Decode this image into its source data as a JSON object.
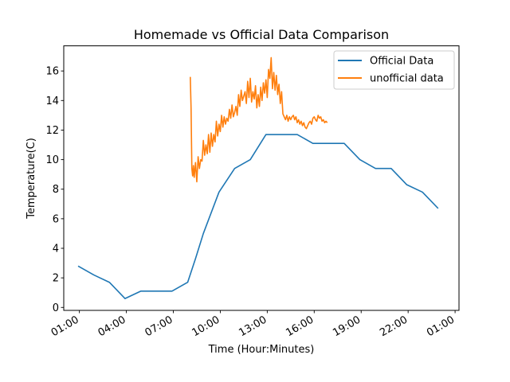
{
  "chart_data": {
    "type": "line",
    "title": "Homemade vs Official Data Comparison",
    "xlabel": "Time (Hour:Minutes)",
    "ylabel": "Temperature(C)",
    "xlim": [
      "00:00",
      "25:15"
    ],
    "ylim": [
      -0.2,
      17.7
    ],
    "x_ticks": [
      "01:00",
      "04:00",
      "07:00",
      "10:00",
      "13:00",
      "16:00",
      "19:00",
      "22:00",
      "01:00"
    ],
    "y_ticks": [
      0,
      2,
      4,
      6,
      8,
      10,
      12,
      14,
      16
    ],
    "grid": false,
    "legend_placement": "top-right",
    "series": [
      {
        "name": "Official Data",
        "color": "#1f77b4",
        "x": [
          "00:55",
          "01:55",
          "02:55",
          "03:55",
          "04:55",
          "05:55",
          "06:55",
          "07:55",
          "08:25",
          "08:55",
          "09:55",
          "10:55",
          "11:55",
          "12:55",
          "13:55",
          "14:55",
          "15:55",
          "16:55",
          "17:55",
          "18:55",
          "19:55",
          "20:55",
          "21:55",
          "22:55",
          "23:55"
        ],
        "values": [
          2.8,
          2.2,
          1.7,
          0.6,
          1.1,
          1.1,
          1.1,
          1.7,
          3.3,
          5.0,
          7.8,
          9.4,
          10.0,
          11.7,
          11.7,
          11.7,
          11.1,
          11.1,
          11.1,
          10.0,
          9.4,
          9.4,
          8.3,
          7.8,
          6.7
        ]
      },
      {
        "name": "unofficial data",
        "color": "#ff7f0e",
        "x": [
          "08:05",
          "08:08",
          "08:11",
          "08:14",
          "08:17",
          "08:20",
          "08:25",
          "08:30",
          "08:35",
          "08:40",
          "08:45",
          "08:50",
          "08:55",
          "09:00",
          "09:05",
          "09:10",
          "09:15",
          "09:20",
          "09:25",
          "09:30",
          "09:35",
          "09:40",
          "09:45",
          "09:50",
          "09:55",
          "10:00",
          "10:05",
          "10:10",
          "10:15",
          "10:20",
          "10:25",
          "10:30",
          "10:35",
          "10:40",
          "10:45",
          "10:50",
          "10:55",
          "11:00",
          "11:05",
          "11:10",
          "11:15",
          "11:20",
          "11:25",
          "11:30",
          "11:35",
          "11:40",
          "11:45",
          "11:50",
          "11:55",
          "12:00",
          "12:05",
          "12:10",
          "12:15",
          "12:20",
          "12:25",
          "12:30",
          "12:35",
          "12:40",
          "12:45",
          "12:50",
          "12:55",
          "13:00",
          "13:05",
          "13:10",
          "13:15",
          "13:20",
          "13:25",
          "13:30",
          "13:35",
          "13:40",
          "13:45",
          "13:50",
          "13:55",
          "14:00",
          "14:05",
          "14:10",
          "14:15",
          "14:20",
          "14:25",
          "14:30",
          "14:35",
          "14:40",
          "14:45",
          "14:50",
          "14:55",
          "15:00",
          "15:05",
          "15:10",
          "15:15",
          "15:20",
          "15:25",
          "15:30",
          "15:35",
          "15:40",
          "15:45",
          "15:50",
          "15:55",
          "16:00",
          "16:05",
          "16:10",
          "16:15",
          "16:20",
          "16:25",
          "16:30",
          "16:35",
          "16:40",
          "16:45",
          "16:50"
        ],
        "values": [
          15.6,
          13.5,
          9.4,
          8.9,
          9.6,
          8.8,
          9.8,
          8.5,
          10.2,
          9.4,
          10.0,
          9.9,
          11.3,
          10.3,
          11.0,
          10.4,
          11.7,
          10.5,
          11.8,
          10.9,
          11.7,
          11.2,
          12.6,
          11.6,
          12.4,
          11.9,
          13.0,
          12.2,
          12.9,
          12.4,
          12.8,
          12.6,
          13.4,
          12.8,
          13.7,
          12.9,
          13.2,
          13.6,
          13.0,
          14.4,
          13.6,
          14.7,
          14.0,
          14.3,
          14.6,
          13.8,
          15.3,
          14.2,
          15.5,
          13.9,
          14.6,
          14.1,
          15.0,
          13.5,
          14.4,
          13.6,
          14.9,
          14.0,
          15.2,
          14.5,
          15.4,
          14.2,
          16.1,
          15.5,
          16.9,
          14.8,
          15.9,
          14.7,
          15.7,
          14.4,
          15.1,
          13.8,
          14.6,
          13.1,
          12.9,
          12.7,
          13.0,
          12.6,
          12.9,
          12.7,
          12.9,
          13.0,
          12.7,
          12.9,
          12.5,
          12.7,
          12.4,
          12.6,
          12.3,
          12.5,
          12.2,
          12.1,
          12.3,
          12.5,
          12.6,
          12.4,
          12.8,
          12.9,
          12.7,
          12.6,
          13.0,
          12.8,
          12.9,
          12.6,
          12.7,
          12.5,
          12.6,
          12.5
        ]
      }
    ]
  }
}
